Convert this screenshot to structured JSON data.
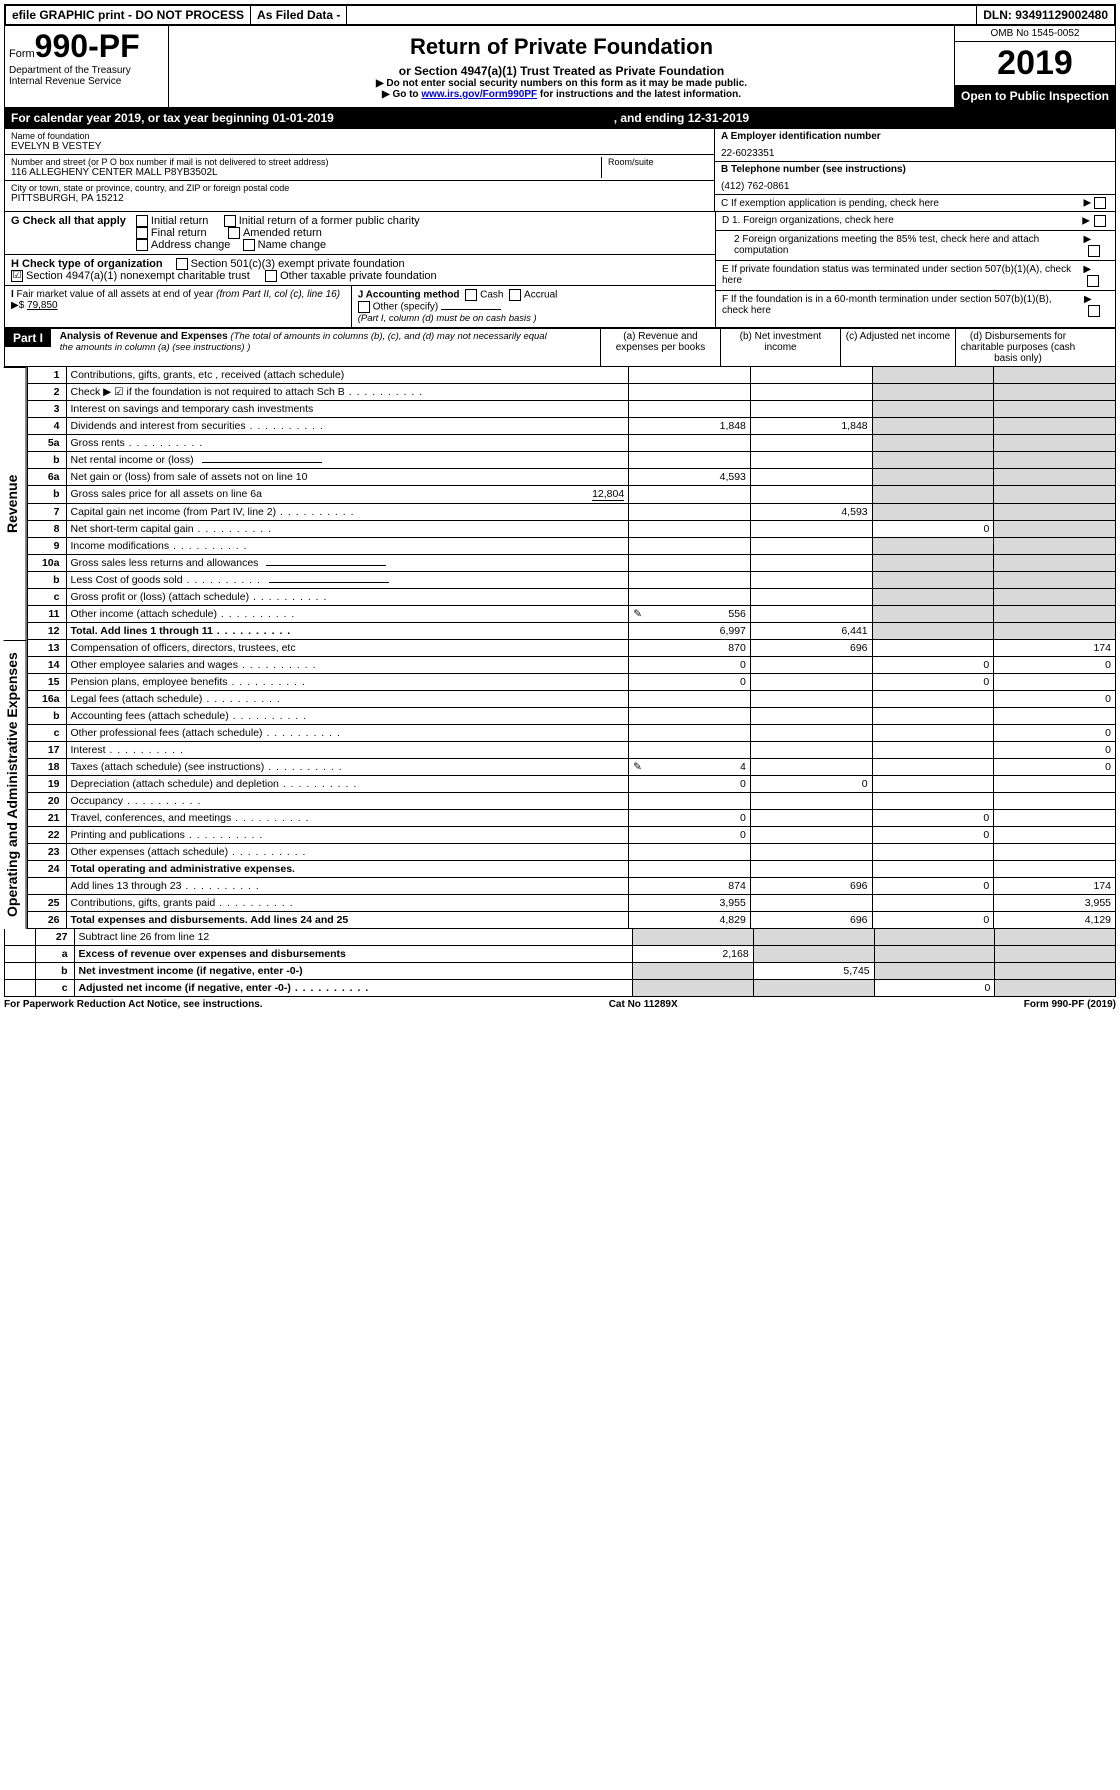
{
  "top": {
    "efile": "efile GRAPHIC print - DO NOT PROCESS",
    "asfiled": "As Filed Data -",
    "dln_label": "DLN:",
    "dln": "93491129002480"
  },
  "header": {
    "form_prefix": "Form",
    "form_num": "990-PF",
    "dept": "Department of the Treasury",
    "irs": "Internal Revenue Service",
    "title": "Return of Private Foundation",
    "subtitle": "or Section 4947(a)(1) Trust Treated as Private Foundation",
    "warn1": "▶ Do not enter social security numbers on this form as it may be made public.",
    "warn2_a": "▶ Go to ",
    "warn2_link": "www.irs.gov/Form990PF",
    "warn2_b": " for instructions and the latest information.",
    "omb": "OMB No 1545-0052",
    "year": "2019",
    "open": "Open to Public Inspection"
  },
  "cal": {
    "a": "For calendar year 2019, or tax year beginning 01-01-2019",
    "b": ", and ending 12-31-2019"
  },
  "info": {
    "name_label": "Name of foundation",
    "name": "EVELYN B VESTEY",
    "addr_label": "Number and street (or P O  box number if mail is not delivered to street address)",
    "room_label": "Room/suite",
    "addr": "116 ALLEGHENY CENTER MALL P8YB3502L",
    "city_label": "City or town, state or province, country, and ZIP or foreign postal code",
    "city": "PITTSBURGH, PA  15212",
    "A_label": "A Employer identification number",
    "A_val": "22-6023351",
    "B_label": "B Telephone number (see instructions)",
    "B_val": "(412) 762-0861",
    "C_label": "C If exemption application is pending, check here"
  },
  "G": {
    "label": "G Check all that apply",
    "opts": [
      "Initial return",
      "Initial return of a former public charity",
      "Final return",
      "Amended return",
      "Address change",
      "Name change"
    ]
  },
  "H": {
    "label": "H Check type of organization",
    "opt1": "Section 501(c)(3) exempt private foundation",
    "opt2": "Section 4947(a)(1) nonexempt charitable trust",
    "opt3": "Other taxable private foundation"
  },
  "I": {
    "label": "I Fair market value of all assets at end of year (from Part II, col (c), line 16) ▶$",
    "val": "79,850"
  },
  "J": {
    "label": "J Accounting method",
    "cash": "Cash",
    "accrual": "Accrual",
    "other": "Other (specify)",
    "note": "(Part I, column (d) must be on cash basis )"
  },
  "D": {
    "d1": "D 1. Foreign organizations, check here",
    "d2": "2 Foreign organizations meeting the 85% test, check here and attach computation",
    "E": "E  If private foundation status was terminated under section 507(b)(1)(A), check here",
    "F": "F  If the foundation is in a 60-month termination under section 507(b)(1)(B), check here"
  },
  "part1": {
    "tag": "Part I",
    "title": "Analysis of Revenue and Expenses",
    "paren": "(The total of amounts in columns (b), (c), and (d) may not necessarily equal the amounts in column (a) (see instructions) )",
    "col_a": "(a)   Revenue and expenses per books",
    "col_b": "(b)   Net investment income",
    "col_c": "(c)   Adjusted net income",
    "col_d": "(d)   Disbursements for charitable purposes (cash basis only)"
  },
  "rev_label": "Revenue",
  "exp_label": "Operating and Administrative Expenses",
  "rows": [
    {
      "n": "1",
      "d": "Contributions, gifts, grants, etc , received (attach schedule)"
    },
    {
      "n": "2",
      "d": "Check ▶ ☑ if the foundation is not required to attach Sch B",
      "dots": true,
      "not_bold": [
        "not"
      ]
    },
    {
      "n": "3",
      "d": "Interest on savings and temporary cash investments"
    },
    {
      "n": "4",
      "d": "Dividends and interest from securities",
      "a": "1,848",
      "b": "1,848",
      "dots": true
    },
    {
      "n": "5a",
      "d": "Gross rents",
      "dots": true
    },
    {
      "n": "b",
      "d": "Net rental income or (loss)",
      "inline_blank": true
    },
    {
      "n": "6a",
      "d": "Net gain or (loss) from sale of assets not on line 10",
      "a": "4,593"
    },
    {
      "n": "b",
      "d": "Gross sales price for all assets on line 6a",
      "inline_val": "12,804"
    },
    {
      "n": "7",
      "d": "Capital gain net income (from Part IV, line 2)",
      "b": "4,593",
      "dots": true
    },
    {
      "n": "8",
      "d": "Net short-term capital gain",
      "c": "0",
      "dots": true
    },
    {
      "n": "9",
      "d": "Income modifications",
      "dots": true
    },
    {
      "n": "10a",
      "d": "Gross sales less returns and allowances",
      "inline_blank": true
    },
    {
      "n": "b",
      "d": "Less  Cost of goods sold",
      "inline_blank": true,
      "dots": true
    },
    {
      "n": "c",
      "d": "Gross profit or (loss) (attach schedule)",
      "dots": true
    },
    {
      "n": "11",
      "d": "Other income (attach schedule)",
      "a": "556",
      "pencil": true,
      "dots": true
    },
    {
      "n": "12",
      "d": "Total. Add lines 1 through 11",
      "a": "6,997",
      "b": "6,441",
      "bold": true,
      "dots": true
    }
  ],
  "exp_rows": [
    {
      "n": "13",
      "d": "Compensation of officers, directors, trustees, etc",
      "a": "870",
      "b": "696",
      "ddd": "174"
    },
    {
      "n": "14",
      "d": "Other employee salaries and wages",
      "a": "0",
      "c": "0",
      "ddd": "0",
      "dots": true
    },
    {
      "n": "15",
      "d": "Pension plans, employee benefits",
      "a": "0",
      "c": "0",
      "dots": true
    },
    {
      "n": "16a",
      "d": "Legal fees (attach schedule)",
      "ddd": "0",
      "dots": true
    },
    {
      "n": "b",
      "d": "Accounting fees (attach schedule)",
      "dots": true
    },
    {
      "n": "c",
      "d": "Other professional fees (attach schedule)",
      "ddd": "0",
      "dots": true
    },
    {
      "n": "17",
      "d": "Interest",
      "ddd": "0",
      "dots": true
    },
    {
      "n": "18",
      "d": "Taxes (attach schedule) (see instructions)",
      "a": "4",
      "pencil": true,
      "ddd": "0",
      "dots": true
    },
    {
      "n": "19",
      "d": "Depreciation (attach schedule) and depletion",
      "a": "0",
      "b": "0",
      "dots": true
    },
    {
      "n": "20",
      "d": "Occupancy",
      "dots": true
    },
    {
      "n": "21",
      "d": "Travel, conferences, and meetings",
      "a": "0",
      "c": "0",
      "dots": true
    },
    {
      "n": "22",
      "d": "Printing and publications",
      "a": "0",
      "c": "0",
      "dots": true
    },
    {
      "n": "23",
      "d": "Other expenses (attach schedule)",
      "dots": true
    },
    {
      "n": "24",
      "d": "Total operating and administrative expenses.",
      "bold": true
    },
    {
      "n": "",
      "d": "Add lines 13 through 23",
      "a": "874",
      "b": "696",
      "c": "0",
      "ddd": "174",
      "dots": true
    },
    {
      "n": "25",
      "d": "Contributions, gifts, grants paid",
      "a": "3,955",
      "ddd": "3,955",
      "dots": true
    },
    {
      "n": "26",
      "d": "Total expenses and disbursements. Add lines 24 and 25",
      "a": "4,829",
      "b": "696",
      "c": "0",
      "ddd": "4,129",
      "bold": true
    }
  ],
  "tail_rows": [
    {
      "n": "27",
      "d": "Subtract line 26 from line 12"
    },
    {
      "n": "a",
      "d": "Excess of revenue over expenses and disbursements",
      "a": "2,168",
      "bold": true
    },
    {
      "n": "b",
      "d": "Net investment income (if negative, enter -0-)",
      "b": "5,745",
      "bold": true
    },
    {
      "n": "c",
      "d": "Adjusted net income (if negative, enter -0-)",
      "c": "0",
      "bold": true,
      "dots": true
    }
  ],
  "footer": {
    "left": "For Paperwork Reduction Act Notice, see instructions.",
    "mid": "Cat No  11289X",
    "right_a": "Form ",
    "right_b": "990-PF",
    "right_c": " (2019)"
  }
}
